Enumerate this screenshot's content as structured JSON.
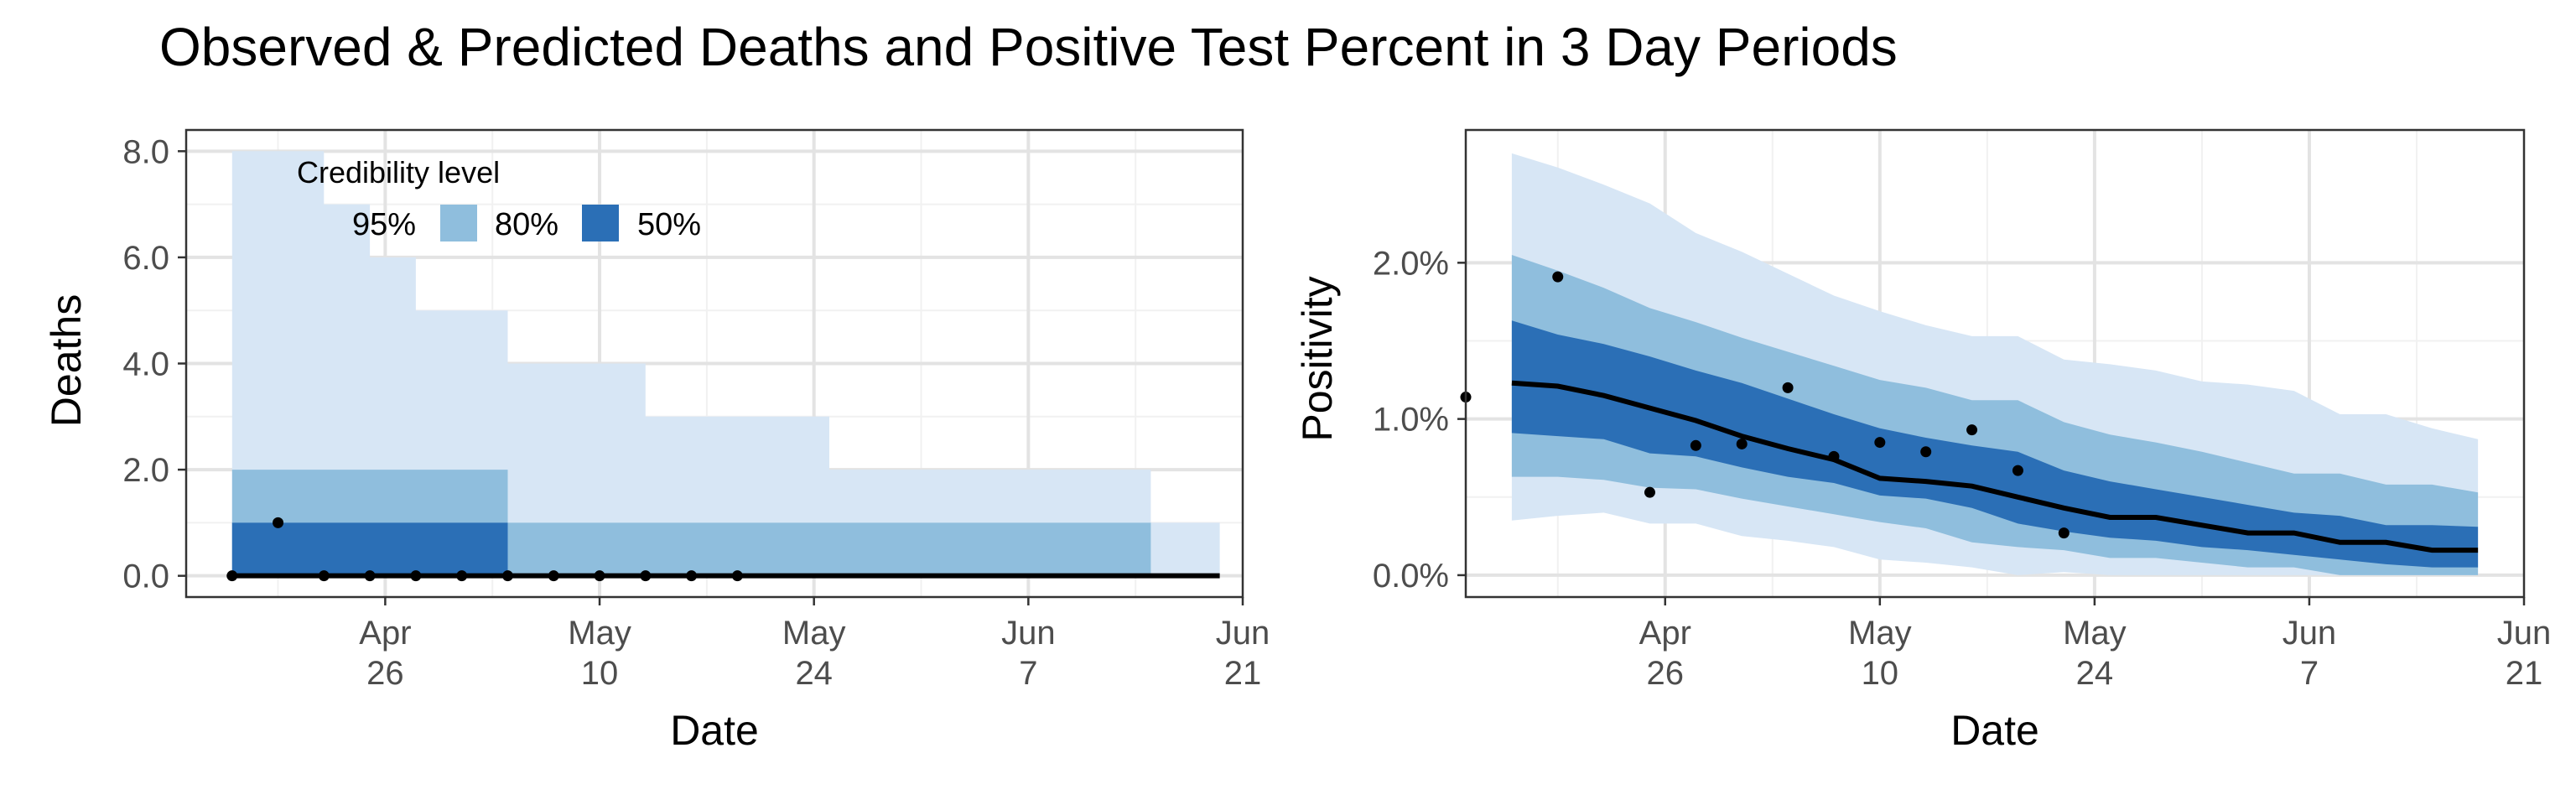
{
  "title": "Observed & Predicted Deaths and Positive Test Percent in 3 Day Periods",
  "colors": {
    "band95": "#d7e6f5",
    "band80": "#8fbedd",
    "band50": "#2b6fb6",
    "median": "#000000",
    "grid_major": "#e3e3e3",
    "grid_minor": "#f1f1f1",
    "panel_border": "#333333"
  },
  "legend": {
    "title": "Credibility level",
    "items": [
      {
        "label": "95%",
        "color": "#d7e6f5"
      },
      {
        "label": "80%",
        "color": "#8fbedd"
      },
      {
        "label": "50%",
        "color": "#2b6fb6"
      }
    ]
  },
  "chart_data": [
    {
      "type": "area",
      "name": "deaths",
      "xlabel": "Date",
      "ylabel": "Deaths",
      "x_range": [
        "2020-04-13",
        "2020-06-21"
      ],
      "ylim": [
        -0.4,
        8.4
      ],
      "y_ticks": [
        0,
        2,
        4,
        6,
        8
      ],
      "y_tick_labels": [
        "0.0",
        "2.0",
        "4.0",
        "6.0",
        "8.0"
      ],
      "x_ticks": [
        "2020-04-26",
        "2020-05-10",
        "2020-05-24",
        "2020-06-07",
        "2020-06-21"
      ],
      "x_tick_labels": [
        "Apr\n26",
        "May\n10",
        "May\n24",
        "Jun\n7",
        "Jun\n21"
      ],
      "grid": true,
      "legend_position": "top-left",
      "dates": [
        "2020-04-16",
        "2020-04-19",
        "2020-04-22",
        "2020-04-25",
        "2020-04-28",
        "2020-05-01",
        "2020-05-04",
        "2020-05-07",
        "2020-05-10",
        "2020-05-13",
        "2020-05-16",
        "2020-05-19",
        "2020-05-22",
        "2020-05-25",
        "2020-05-28",
        "2020-05-31",
        "2020-06-03",
        "2020-06-06",
        "2020-06-09",
        "2020-06-12",
        "2020-06-15",
        "2020-06-18"
      ],
      "median": [
        0,
        0,
        0,
        0,
        0,
        0,
        0,
        0,
        0,
        0,
        0,
        0,
        0,
        0,
        0,
        0,
        0,
        0,
        0,
        0,
        0,
        0
      ],
      "lower95": [
        0,
        0,
        0,
        0,
        0,
        0,
        0,
        0,
        0,
        0,
        0,
        0,
        0,
        0,
        0,
        0,
        0,
        0,
        0,
        0,
        0,
        0
      ],
      "upper95": [
        8,
        8,
        7,
        6,
        5,
        5,
        4,
        4,
        4,
        3,
        3,
        3,
        3,
        2,
        2,
        2,
        2,
        2,
        2,
        2,
        1,
        1
      ],
      "lower80": [
        0,
        0,
        0,
        0,
        0,
        0,
        0,
        0,
        0,
        0,
        0,
        0,
        0,
        0,
        0,
        0,
        0,
        0,
        0,
        0,
        0,
        0
      ],
      "upper80": [
        2,
        2,
        2,
        2,
        2,
        2,
        1,
        1,
        1,
        1,
        1,
        1,
        1,
        1,
        1,
        1,
        1,
        1,
        1,
        1,
        0,
        0
      ],
      "lower50": [
        0,
        0,
        0,
        0,
        0,
        0,
        0,
        0,
        0,
        0,
        0,
        0,
        0,
        0,
        0,
        0,
        0,
        0,
        0,
        0,
        0,
        0
      ],
      "upper50": [
        1,
        1,
        1,
        1,
        1,
        1,
        0,
        0,
        0,
        0,
        0,
        0,
        0,
        0,
        0,
        0,
        0,
        0,
        0,
        0,
        0,
        0
      ],
      "observed": [
        {
          "date": "2020-04-16",
          "value": 0
        },
        {
          "date": "2020-04-19",
          "value": 1
        },
        {
          "date": "2020-04-22",
          "value": 0
        },
        {
          "date": "2020-04-25",
          "value": 0
        },
        {
          "date": "2020-04-28",
          "value": 0
        },
        {
          "date": "2020-05-01",
          "value": 0
        },
        {
          "date": "2020-05-04",
          "value": 0
        },
        {
          "date": "2020-05-07",
          "value": 0
        },
        {
          "date": "2020-05-10",
          "value": 0
        },
        {
          "date": "2020-05-13",
          "value": 0
        },
        {
          "date": "2020-05-16",
          "value": 0
        },
        {
          "date": "2020-05-19",
          "value": 0
        }
      ]
    },
    {
      "type": "area",
      "name": "positivity",
      "xlabel": "Date",
      "ylabel": "Positivity",
      "x_range": [
        "2020-04-13",
        "2020-06-21"
      ],
      "ylim": [
        -0.14,
        2.85
      ],
      "y_ticks": [
        0,
        1,
        2
      ],
      "y_tick_labels": [
        "0.0%",
        "1.0%",
        "2.0%"
      ],
      "x_ticks": [
        "2020-04-26",
        "2020-05-10",
        "2020-05-24",
        "2020-06-07",
        "2020-06-21"
      ],
      "x_tick_labels": [
        "Apr\n26",
        "May\n10",
        "May\n24",
        "Jun\n7",
        "Jun\n21"
      ],
      "grid": true,
      "dates": [
        "2020-04-16",
        "2020-04-19",
        "2020-04-22",
        "2020-04-25",
        "2020-04-28",
        "2020-05-01",
        "2020-05-04",
        "2020-05-07",
        "2020-05-10",
        "2020-05-13",
        "2020-05-16",
        "2020-05-19",
        "2020-05-22",
        "2020-05-25",
        "2020-05-28",
        "2020-05-31",
        "2020-06-03",
        "2020-06-06",
        "2020-06-09",
        "2020-06-12",
        "2020-06-15",
        "2020-06-18"
      ],
      "median": [
        1.23,
        1.21,
        1.15,
        1.07,
        0.99,
        0.89,
        0.81,
        0.74,
        0.62,
        0.6,
        0.57,
        0.5,
        0.43,
        0.37,
        0.37,
        0.32,
        0.27,
        0.27,
        0.21,
        0.21,
        0.16,
        0.16
      ],
      "lower95": [
        0.35,
        0.38,
        0.4,
        0.33,
        0.33,
        0.25,
        0.22,
        0.18,
        0.1,
        0.08,
        0.05,
        0.0,
        0.02,
        0.0,
        0.0,
        0.0,
        0.0,
        0.0,
        0.0,
        0.0,
        0.0,
        0.0
      ],
      "upper95": [
        2.7,
        2.61,
        2.5,
        2.38,
        2.19,
        2.07,
        1.93,
        1.79,
        1.69,
        1.6,
        1.53,
        1.53,
        1.38,
        1.35,
        1.31,
        1.24,
        1.22,
        1.18,
        1.03,
        1.03,
        0.94,
        0.87
      ],
      "lower80": [
        0.63,
        0.63,
        0.61,
        0.56,
        0.55,
        0.49,
        0.44,
        0.39,
        0.34,
        0.3,
        0.21,
        0.18,
        0.16,
        0.11,
        0.11,
        0.08,
        0.05,
        0.05,
        0.0,
        0.0,
        0.0,
        0.0
      ],
      "upper80": [
        2.05,
        1.95,
        1.84,
        1.71,
        1.62,
        1.52,
        1.43,
        1.34,
        1.25,
        1.2,
        1.12,
        1.12,
        0.98,
        0.9,
        0.85,
        0.79,
        0.72,
        0.65,
        0.65,
        0.58,
        0.58,
        0.53
      ],
      "lower50": [
        0.91,
        0.89,
        0.87,
        0.78,
        0.76,
        0.69,
        0.63,
        0.59,
        0.51,
        0.49,
        0.43,
        0.33,
        0.28,
        0.24,
        0.22,
        0.18,
        0.16,
        0.13,
        0.1,
        0.07,
        0.05,
        0.05
      ],
      "upper50": [
        1.63,
        1.54,
        1.48,
        1.4,
        1.31,
        1.23,
        1.13,
        1.03,
        0.94,
        0.88,
        0.83,
        0.79,
        0.67,
        0.6,
        0.55,
        0.5,
        0.45,
        0.4,
        0.38,
        0.32,
        0.32,
        0.31
      ],
      "observed": [
        {
          "date": "2020-04-13",
          "value": 1.14
        },
        {
          "date": "2020-04-19",
          "value": 1.91
        },
        {
          "date": "2020-04-25",
          "value": 0.53
        },
        {
          "date": "2020-04-28",
          "value": 0.83
        },
        {
          "date": "2020-05-01",
          "value": 0.84
        },
        {
          "date": "2020-05-04",
          "value": 1.2
        },
        {
          "date": "2020-05-07",
          "value": 0.76
        },
        {
          "date": "2020-05-10",
          "value": 0.85
        },
        {
          "date": "2020-05-13",
          "value": 0.79
        },
        {
          "date": "2020-05-16",
          "value": 0.93
        },
        {
          "date": "2020-05-19",
          "value": 0.67
        },
        {
          "date": "2020-05-22",
          "value": 0.27
        }
      ]
    }
  ]
}
